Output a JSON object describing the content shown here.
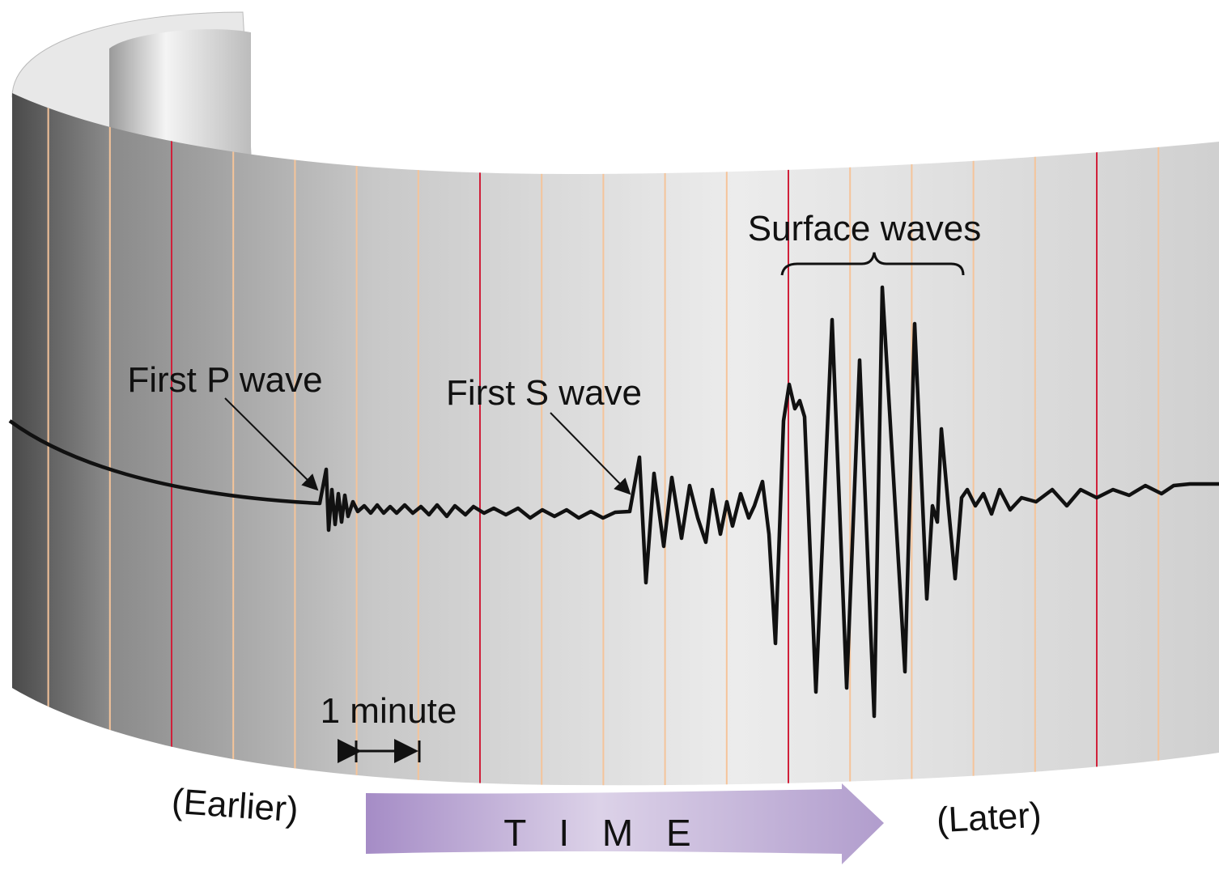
{
  "labels": {
    "surface_waves": "Surface waves",
    "first_p_wave": "First P wave",
    "first_s_wave": "First S wave",
    "one_minute": "1 minute",
    "earlier": "(Earlier)",
    "later": "(Later)",
    "time": "T I M E"
  }
}
